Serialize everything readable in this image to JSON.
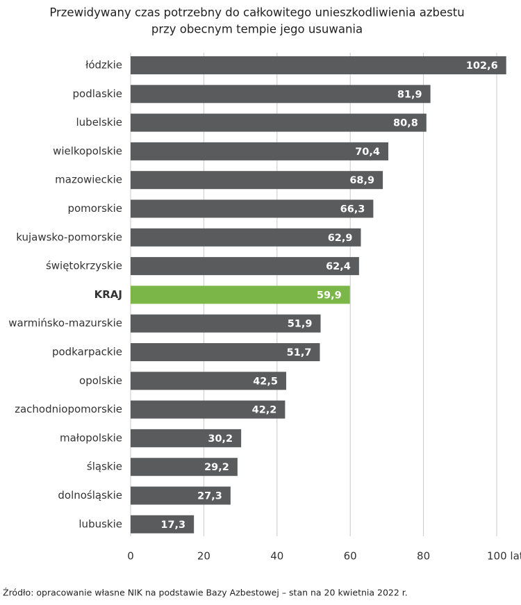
{
  "chart_data": {
    "type": "barh",
    "title": [
      "Przewidywany czas potrzebny do całkowitego unieszkodliwienia azbestu",
      "przy obecnym tempie jego usuwania"
    ],
    "categories": [
      "łódzkie",
      "podlaskie",
      "lubelskie",
      "wielkopolskie",
      "mazowieckie",
      "pomorskie",
      "kujawsko-pomorskie",
      "świętokrzyskie",
      "KRAJ",
      "warmińsko-mazurskie",
      "podkarpackie",
      "opolskie",
      "zachodniopomorskie",
      "małopolskie",
      "śląskie",
      "dolnośląskie",
      "lubuskie"
    ],
    "values": [
      102.6,
      81.9,
      80.8,
      70.4,
      68.9,
      66.3,
      62.9,
      62.4,
      59.9,
      51.9,
      51.7,
      42.5,
      42.2,
      30.2,
      29.2,
      27.3,
      17.3
    ],
    "value_labels": [
      "102,6",
      "81,9",
      "80,8",
      "70,4",
      "68,9",
      "66,3",
      "62,9",
      "62,4",
      "59,9",
      "51,9",
      "51,7",
      "42,5",
      "42,2",
      "30,2",
      "29,2",
      "27,3",
      "17,3"
    ],
    "color": "#5a5b5d",
    "colors": [
      "#5a5b5d",
      "#5a5b5d",
      "#5a5b5d",
      "#5a5b5d",
      "#5a5b5d",
      "#5a5b5d",
      "#5a5b5d",
      "#5a5b5d",
      "#7ab648",
      "#5a5b5d",
      "#5a5b5d",
      "#5a5b5d",
      "#5a5b5d",
      "#5a5b5d",
      "#5a5b5d",
      "#5a5b5d",
      "#5a5b5d"
    ],
    "xlim": [
      0,
      100
    ],
    "xticks": [
      0,
      20,
      40,
      60,
      80,
      {
        "value": 100,
        "label": "100 lat"
      }
    ],
    "grid": true,
    "source": "Źródło: opracowanie własne NIK na podstawie Bazy Azbestowej – stan na 20 kwietnia 2022 r."
  }
}
